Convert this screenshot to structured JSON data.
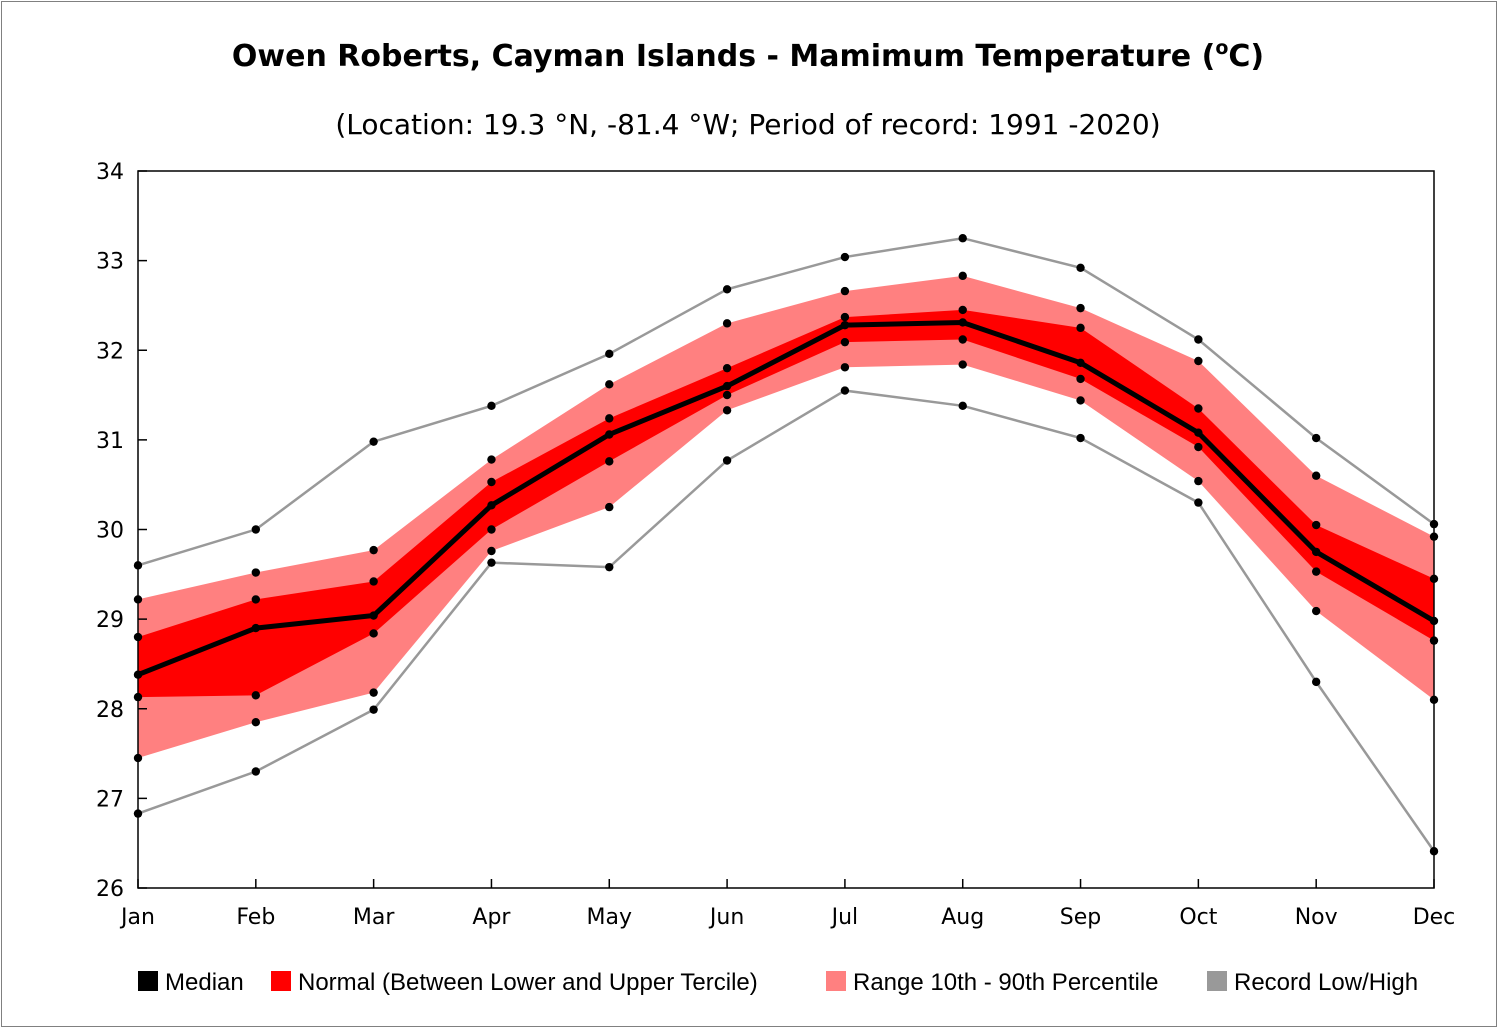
{
  "chart_data": {
    "type": "area",
    "title": "Owen Roberts, Cayman Islands - Mamimum Temperature (",
    "title_sup": "o",
    "title_end": "C)",
    "subtitle": "(Location: 19.3 °N, -81.4 °W; Period of record: 1991 -2020)",
    "categories": [
      "Jan",
      "Feb",
      "Mar",
      "Apr",
      "May",
      "Jun",
      "Jul",
      "Aug",
      "Sep",
      "Oct",
      "Nov",
      "Dec"
    ],
    "ylim": [
      26,
      34
    ],
    "yticks": [
      "26",
      "27",
      "28",
      "29",
      "30",
      "31",
      "32",
      "33",
      "34"
    ],
    "grid": false,
    "legend_position": "bottom",
    "series": [
      {
        "name": "Median",
        "key": "median",
        "color": "#000000",
        "values": [
          28.38,
          28.9,
          29.04,
          30.27,
          31.06,
          31.6,
          32.28,
          32.31,
          31.86,
          31.08,
          29.75,
          28.98
        ]
      },
      {
        "name": "Normal (Between Lower and Upper Tercile)",
        "key": "normal",
        "color": "#ff0000",
        "lower": [
          28.13,
          28.15,
          28.84,
          30.0,
          30.76,
          31.5,
          32.09,
          32.12,
          31.68,
          30.92,
          29.53,
          28.76
        ],
        "upper": [
          28.8,
          29.22,
          29.42,
          30.53,
          31.24,
          31.8,
          32.37,
          32.45,
          32.25,
          31.35,
          30.05,
          29.45
        ]
      },
      {
        "name": "Range 10th - 90th Percentile",
        "key": "percentile",
        "color": "#ff8080",
        "lower": [
          27.45,
          27.85,
          28.18,
          29.76,
          30.25,
          31.33,
          31.81,
          31.84,
          31.44,
          30.54,
          29.09,
          28.1
        ],
        "upper": [
          29.22,
          29.52,
          29.77,
          30.78,
          31.62,
          32.3,
          32.66,
          32.83,
          32.47,
          31.88,
          30.6,
          29.92
        ]
      },
      {
        "name": "Record Low/High",
        "key": "record",
        "color": "#999999",
        "lower": [
          26.83,
          27.3,
          27.99,
          29.63,
          29.58,
          30.77,
          31.55,
          31.38,
          31.02,
          30.3,
          28.3,
          26.41
        ],
        "upper": [
          29.6,
          30.0,
          30.98,
          31.38,
          31.96,
          32.68,
          33.04,
          33.25,
          32.92,
          32.12,
          31.02,
          30.06
        ]
      }
    ]
  }
}
